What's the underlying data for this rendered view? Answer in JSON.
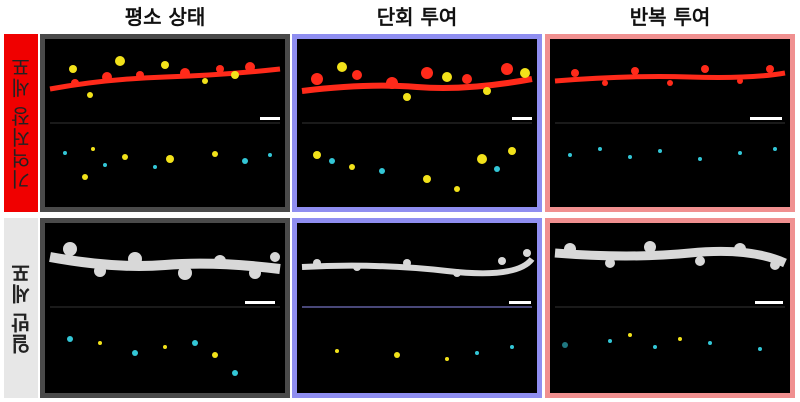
{
  "columns": [
    {
      "label": "평소 상태",
      "frame_color": "#4a4a4a"
    },
    {
      "label": "단회 투여",
      "frame_color": "#8f8ef0"
    },
    {
      "label": "반복 투여",
      "frame_color": "#f09090"
    }
  ],
  "rows": [
    {
      "label": "기억저장 세포",
      "color": "#f00000"
    },
    {
      "label": "일반 세포",
      "color": "#e7e7e7"
    }
  ],
  "colors": {
    "red_channel": "#ff2a1a",
    "yellow_spots": "#f2e21a",
    "cyan_spots": "#33c6d6",
    "gray_channel": "#d8d8d8"
  }
}
